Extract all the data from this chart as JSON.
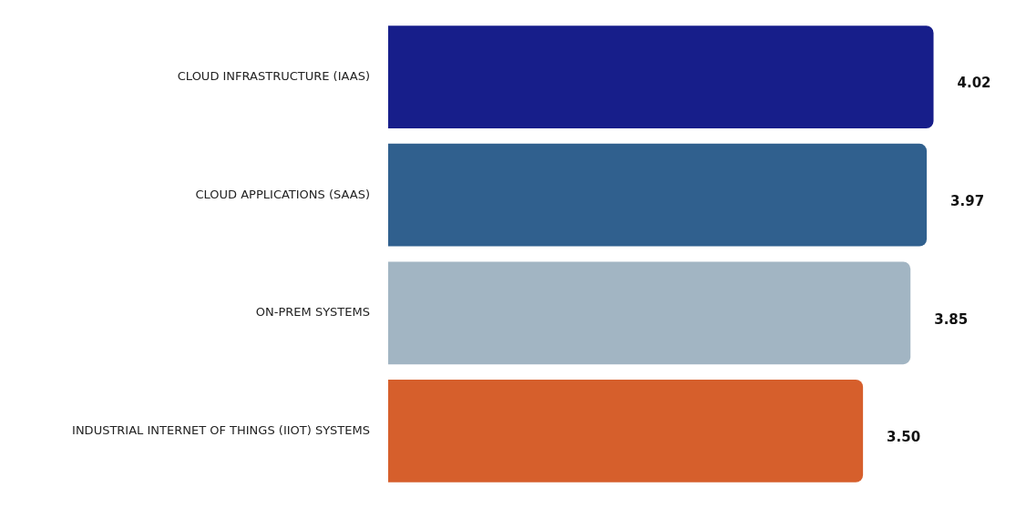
{
  "chart_data": {
    "type": "bar",
    "orientation": "horizontal",
    "categories": [
      "CLOUD INFRASTRUCTURE (IAAS)",
      "CLOUD APPLICATIONS (SAAS)",
      "ON-PREM SYSTEMS",
      "INDUSTRIAL INTERNET OF THINGS (IIOT) SYSTEMS"
    ],
    "values": [
      4.02,
      3.97,
      3.85,
      3.5
    ],
    "colors": [
      "#171e8a",
      "#30608e",
      "#a2b5c3",
      "#d65f2c"
    ],
    "value_labels": [
      "4.02",
      "3.97",
      "3.85",
      "3.50"
    ],
    "legend": false,
    "tick_labels": "y"
  }
}
